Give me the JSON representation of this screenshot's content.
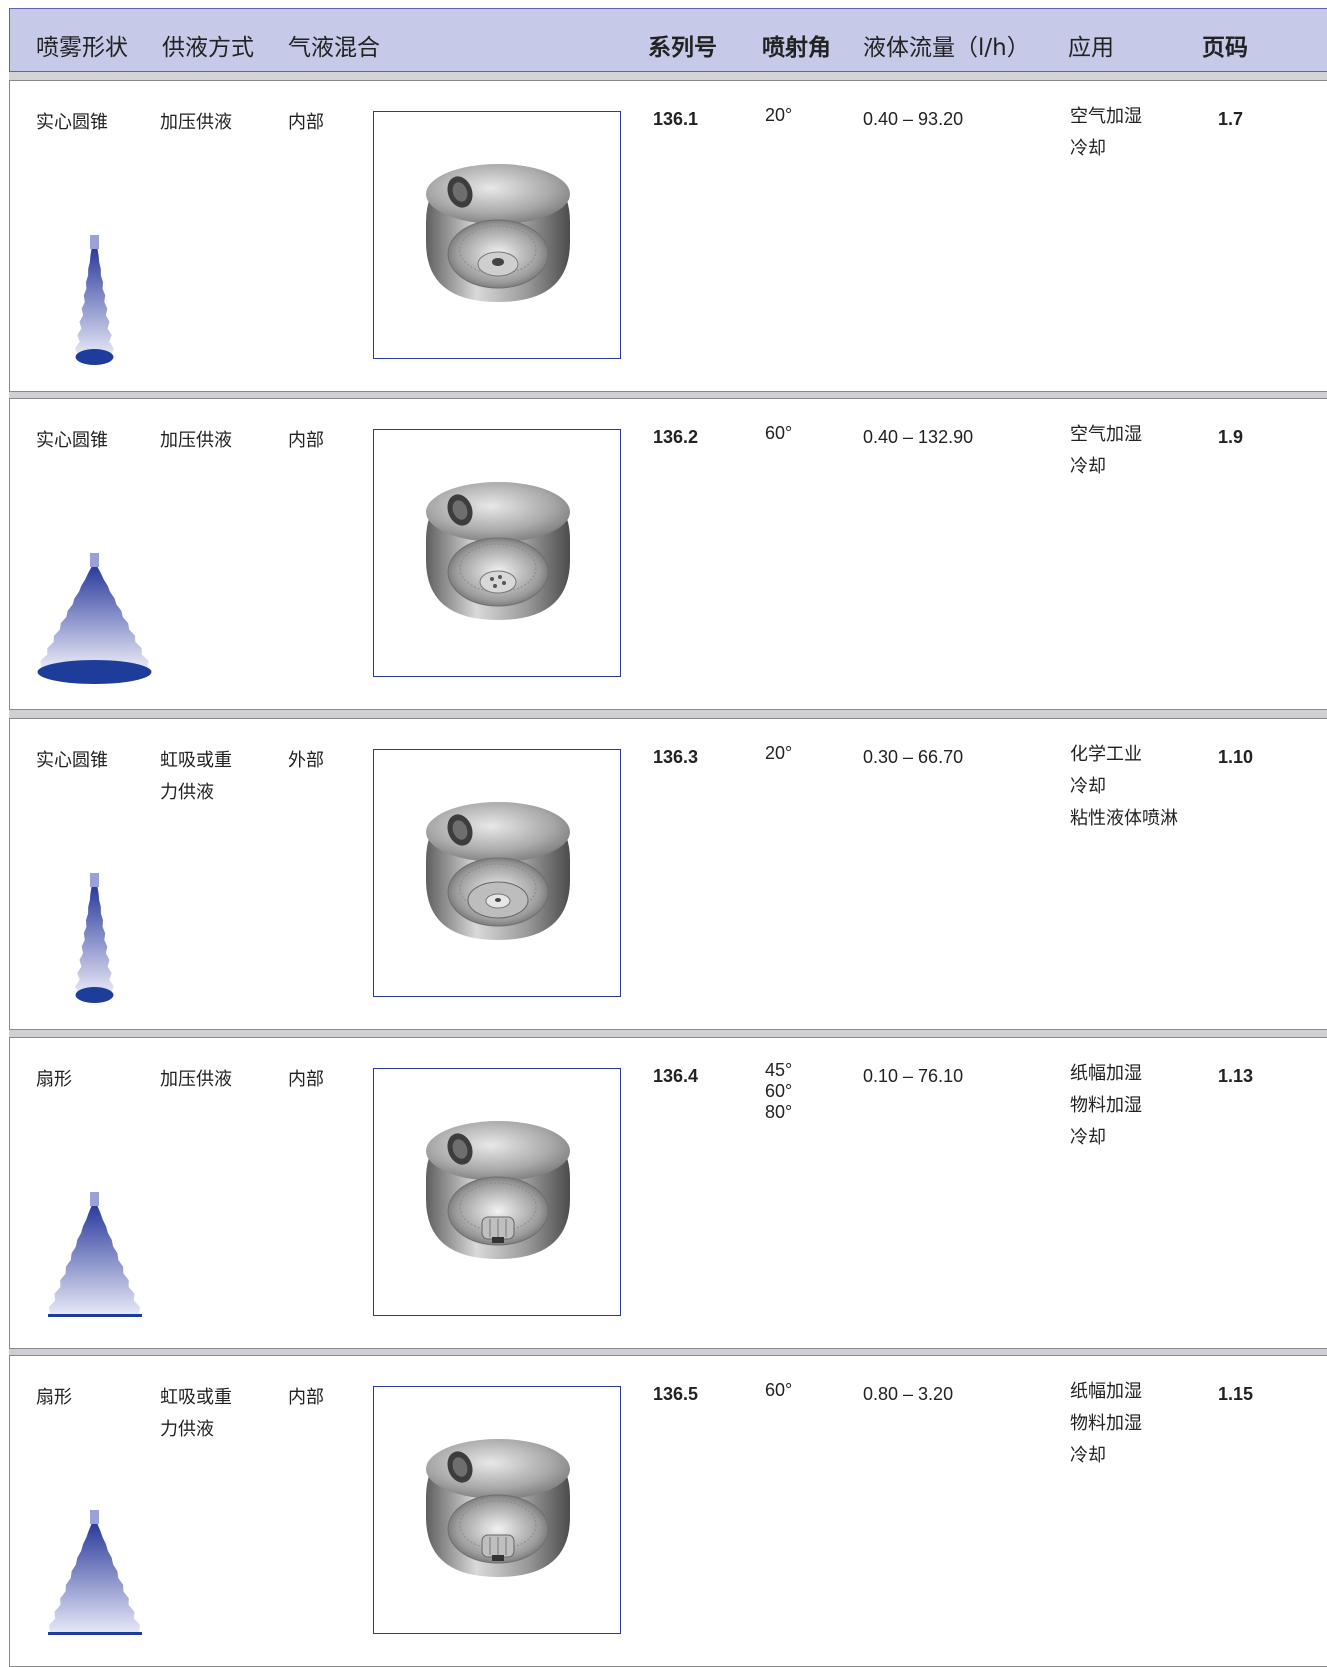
{
  "header": {
    "spray_shape": "喷雾形状",
    "supply": "供液方式",
    "mixing": "气液混合",
    "series": "系列号",
    "angle": "喷射角",
    "flow": "液体流量（l/h）",
    "application": "应用",
    "page": "页码"
  },
  "colors": {
    "header_bg": "#c7c9e8",
    "header_border": "#5b63b0",
    "spray_blue": "#1e3c9a",
    "frame": "#2a3a9a"
  },
  "rows": [
    {
      "shape": "实心圆锥",
      "supply": [
        "加压供液"
      ],
      "mixing": "内部",
      "series": "136.1",
      "angles": [
        "20°"
      ],
      "flow": "0.40 – 93.20",
      "applications": [
        "空气加湿",
        "冷却"
      ],
      "page": "1.7",
      "spray_icon": "narrow-cone-spray-icon",
      "photo_icon": "nozzle-photo"
    },
    {
      "shape": "实心圆锥",
      "supply": [
        "加压供液"
      ],
      "mixing": "内部",
      "series": "136.2",
      "angles": [
        "60°"
      ],
      "flow": "0.40 – 132.90",
      "applications": [
        "空气加湿",
        "冷却"
      ],
      "page": "1.9",
      "spray_icon": "wide-cone-spray-icon",
      "photo_icon": "nozzle-photo"
    },
    {
      "shape": "实心圆锥",
      "supply": [
        "虹吸或重",
        "力供液"
      ],
      "mixing": "外部",
      "series": "136.3",
      "angles": [
        "20°"
      ],
      "flow": "0.30 – 66.70",
      "applications": [
        "化学工业",
        "冷却",
        "粘性液体喷淋"
      ],
      "page": "1.10",
      "spray_icon": "narrow-cone-spray-icon",
      "photo_icon": "nozzle-photo"
    },
    {
      "shape": "扇形",
      "supply": [
        "加压供液"
      ],
      "mixing": "内部",
      "series": "136.4",
      "angles": [
        "45°",
        "60°",
        "80°"
      ],
      "flow": "0.10 – 76.10",
      "applications": [
        "纸幅加湿",
        "物料加湿",
        "冷却"
      ],
      "page": "1.13",
      "spray_icon": "flat-fan-spray-icon",
      "photo_icon": "nozzle-photo"
    },
    {
      "shape": "扇形",
      "supply": [
        "虹吸或重",
        "力供液"
      ],
      "mixing": "内部",
      "series": "136.5",
      "angles": [
        "60°"
      ],
      "flow": "0.80 – 3.20",
      "applications": [
        "纸幅加湿",
        "物料加湿",
        "冷却"
      ],
      "page": "1.15",
      "spray_icon": "flat-fan-spray-icon",
      "photo_icon": "nozzle-photo"
    }
  ]
}
